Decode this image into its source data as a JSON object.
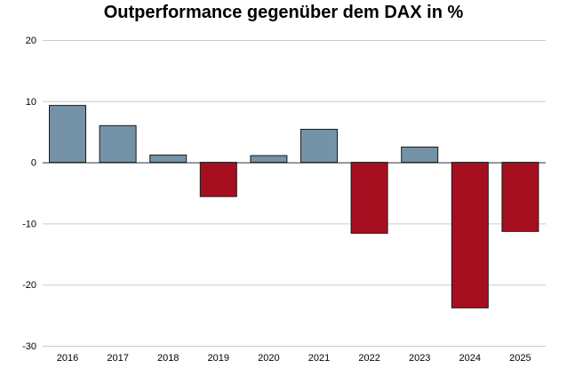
{
  "chart_data": {
    "type": "bar",
    "title": "Outperformance gegenüber dem DAX in %",
    "xlabel": "",
    "ylabel": "",
    "categories": [
      "2016",
      "2017",
      "2018",
      "2019",
      "2020",
      "2021",
      "2022",
      "2023",
      "2024",
      "2025"
    ],
    "values": [
      9.3,
      6.0,
      1.2,
      -5.6,
      1.1,
      5.4,
      -11.6,
      2.5,
      -23.8,
      -11.3
    ],
    "ylim": [
      -30,
      20
    ],
    "yticks": [
      20,
      10,
      0,
      -10,
      -20,
      -30
    ],
    "grid": true,
    "legend": "none",
    "colors": {
      "positive": "#7492a8",
      "negative": "#a50f20",
      "grid": "#cccccc",
      "bar_edge": "#1a1a1a",
      "zero_line": "#333333"
    }
  }
}
